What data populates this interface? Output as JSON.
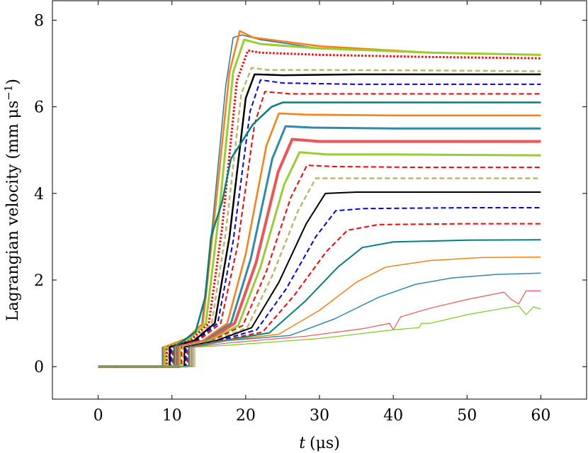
{
  "chart_data": {
    "type": "line",
    "title": "",
    "xlabel_var": "t",
    "xlabel_unit": "(μs)",
    "ylabel": "Lagrangian velocity  (mm μs",
    "ylabel_sup": "−1",
    "ylabel_close": ")",
    "xlim": [
      -6.2,
      66.2
    ],
    "ylim": [
      -0.75,
      8.45
    ],
    "xticks": [
      0,
      10,
      20,
      30,
      40,
      50,
      60
    ],
    "yticks": [
      0,
      2,
      4,
      6,
      8
    ],
    "xtick_labels": [
      "0",
      "10",
      "20",
      "30",
      "40",
      "50",
      "60"
    ],
    "ytick_labels": [
      "0",
      "2",
      "4",
      "6",
      "8"
    ],
    "grid": false,
    "legend": "none",
    "series": [
      {
        "color": "#1f77b4",
        "dash": "solid",
        "width": 1.5,
        "points": [
          [
            0,
            0
          ],
          [
            8.7,
            0
          ],
          [
            8.7,
            0.45
          ],
          [
            12,
            0.6
          ],
          [
            14,
            0.9
          ],
          [
            15.5,
            3.3
          ],
          [
            17.3,
            6.5
          ],
          [
            18.3,
            7.6
          ],
          [
            19.5,
            7.66
          ],
          [
            22,
            7.55
          ],
          [
            30,
            7.35
          ],
          [
            45,
            7.25
          ],
          [
            60,
            7.2
          ]
        ]
      },
      {
        "color": "#ff7f0e",
        "dash": "solid",
        "width": 2.5,
        "points": [
          [
            0,
            0
          ],
          [
            8.9,
            0
          ],
          [
            8.9,
            0.45
          ],
          [
            12,
            0.65
          ],
          [
            14.2,
            1.0
          ],
          [
            15.8,
            3.5
          ],
          [
            17.8,
            6.8
          ],
          [
            19.2,
            7.75
          ],
          [
            21,
            7.6
          ],
          [
            30,
            7.4
          ],
          [
            45,
            7.25
          ],
          [
            60,
            7.2
          ]
        ]
      },
      {
        "color": "#9acd32",
        "dash": "solid",
        "width": 3.0,
        "points": [
          [
            0,
            0
          ],
          [
            9.1,
            0
          ],
          [
            9.1,
            0.45
          ],
          [
            12.3,
            0.62
          ],
          [
            14.6,
            1.0
          ],
          [
            16.3,
            3.4
          ],
          [
            18.3,
            6.8
          ],
          [
            19.8,
            7.55
          ],
          [
            22,
            7.45
          ],
          [
            30,
            7.35
          ],
          [
            45,
            7.25
          ],
          [
            60,
            7.2
          ]
        ]
      },
      {
        "color": "#ff0000",
        "dash": "dotted",
        "width": 3.0,
        "points": [
          [
            0,
            0
          ],
          [
            9.3,
            0
          ],
          [
            9.3,
            0.45
          ],
          [
            12.5,
            0.6
          ],
          [
            15,
            1.0
          ],
          [
            16.8,
            3.2
          ],
          [
            18.8,
            6.6
          ],
          [
            20.3,
            7.3
          ],
          [
            22,
            7.25
          ],
          [
            30,
            7.2
          ],
          [
            45,
            7.15
          ],
          [
            60,
            7.12
          ]
        ]
      },
      {
        "color": "#bdb76b",
        "dash": "dashed",
        "width": 2.5,
        "points": [
          [
            0,
            0
          ],
          [
            9.5,
            0
          ],
          [
            9.5,
            0.45
          ],
          [
            12.8,
            0.6
          ],
          [
            15.4,
            1.0
          ],
          [
            17.3,
            3.1
          ],
          [
            19.4,
            6.3
          ],
          [
            20.8,
            6.9
          ],
          [
            23,
            6.85
          ],
          [
            30,
            6.85
          ],
          [
            45,
            6.84
          ],
          [
            60,
            6.82
          ]
        ]
      },
      {
        "color": "#000000",
        "dash": "solid",
        "width": 2.5,
        "points": [
          [
            0,
            0
          ],
          [
            9.7,
            0
          ],
          [
            9.7,
            0.45
          ],
          [
            13,
            0.6
          ],
          [
            15.8,
            1.0
          ],
          [
            17.8,
            3.0
          ],
          [
            20,
            6.2
          ],
          [
            21.2,
            6.75
          ],
          [
            25,
            6.73
          ],
          [
            35,
            6.75
          ],
          [
            60,
            6.75
          ]
        ]
      },
      {
        "color": "#0000ee",
        "dash": "dashed",
        "width": 2.0,
        "points": [
          [
            0,
            0
          ],
          [
            9.9,
            0
          ],
          [
            9.9,
            0.45
          ],
          [
            13.3,
            0.6
          ],
          [
            16.2,
            1.0
          ],
          [
            18.3,
            2.9
          ],
          [
            20.6,
            5.9
          ],
          [
            22,
            6.62
          ],
          [
            25,
            6.55
          ],
          [
            35,
            6.52
          ],
          [
            60,
            6.52
          ]
        ]
      },
      {
        "color": "#ff0000",
        "dash": "dashed",
        "width": 2.0,
        "points": [
          [
            0,
            0
          ],
          [
            10.1,
            0
          ],
          [
            10.1,
            0.45
          ],
          [
            13.6,
            0.6
          ],
          [
            16.6,
            1.0
          ],
          [
            18.9,
            2.8
          ],
          [
            21.2,
            5.6
          ],
          [
            22.6,
            6.35
          ],
          [
            26,
            6.3
          ],
          [
            35,
            6.3
          ],
          [
            60,
            6.3
          ]
        ]
      },
      {
        "color": "#008080",
        "dash": "solid",
        "width": 2.5,
        "points": [
          [
            0,
            0
          ],
          [
            10.3,
            0
          ],
          [
            10.3,
            0.45
          ],
          [
            13.2,
            0.8
          ],
          [
            14.5,
            1.6
          ],
          [
            15.3,
            3.0
          ],
          [
            16.8,
            3.8
          ],
          [
            18,
            4.8
          ],
          [
            21,
            5.6
          ],
          [
            23.5,
            6.0
          ],
          [
            25,
            6.1
          ],
          [
            35,
            6.1
          ],
          [
            60,
            6.1
          ]
        ]
      },
      {
        "color": "#ff7f0e",
        "dash": "solid",
        "width": 2.5,
        "points": [
          [
            0,
            0
          ],
          [
            10.5,
            0
          ],
          [
            10.5,
            0.45
          ],
          [
            14.2,
            0.6
          ],
          [
            17.5,
            1.0
          ],
          [
            20,
            2.6
          ],
          [
            22.8,
            5.1
          ],
          [
            24.5,
            5.85
          ],
          [
            28,
            5.82
          ],
          [
            40,
            5.8
          ],
          [
            60,
            5.8
          ]
        ]
      },
      {
        "color": "#2e8bab",
        "dash": "solid",
        "width": 3.0,
        "points": [
          [
            0,
            0
          ],
          [
            10.7,
            0
          ],
          [
            10.7,
            0.45
          ],
          [
            14.5,
            0.6
          ],
          [
            18,
            1.0
          ],
          [
            20.7,
            2.5
          ],
          [
            23.6,
            4.8
          ],
          [
            25.4,
            5.55
          ],
          [
            29,
            5.52
          ],
          [
            40,
            5.5
          ],
          [
            60,
            5.5
          ]
        ]
      },
      {
        "color": "#f05555",
        "dash": "solid",
        "width": 4.0,
        "points": [
          [
            0,
            0
          ],
          [
            10.9,
            0
          ],
          [
            10.9,
            0.45
          ],
          [
            14.8,
            0.6
          ],
          [
            18.5,
            1.0
          ],
          [
            21.4,
            2.4
          ],
          [
            24.4,
            4.5
          ],
          [
            26.3,
            5.25
          ],
          [
            30,
            5.2
          ],
          [
            40,
            5.2
          ],
          [
            60,
            5.2
          ]
        ]
      },
      {
        "color": "#9acd32",
        "dash": "solid",
        "width": 3.0,
        "points": [
          [
            0,
            0
          ],
          [
            11.1,
            0
          ],
          [
            11.1,
            0.45
          ],
          [
            15.1,
            0.6
          ],
          [
            19,
            0.95
          ],
          [
            22,
            2.3
          ],
          [
            25.2,
            4.2
          ],
          [
            27.3,
            4.95
          ],
          [
            31,
            4.9
          ],
          [
            40,
            4.9
          ],
          [
            60,
            4.88
          ]
        ]
      },
      {
        "color": "#ff0000",
        "dash": "dashed",
        "width": 2.0,
        "points": [
          [
            0,
            0
          ],
          [
            11.3,
            0
          ],
          [
            11.3,
            0.45
          ],
          [
            15.4,
            0.6
          ],
          [
            19.6,
            0.95
          ],
          [
            22.8,
            2.2
          ],
          [
            26.1,
            3.9
          ],
          [
            28.3,
            4.65
          ],
          [
            32,
            4.62
          ],
          [
            45,
            4.6
          ],
          [
            60,
            4.6
          ]
        ]
      },
      {
        "color": "#bdb76b",
        "dash": "dashed",
        "width": 2.5,
        "points": [
          [
            0,
            0
          ],
          [
            11.5,
            0
          ],
          [
            11.5,
            0.45
          ],
          [
            15.7,
            0.6
          ],
          [
            20.2,
            0.9
          ],
          [
            23.6,
            2.1
          ],
          [
            27.1,
            3.6
          ],
          [
            29.5,
            4.35
          ],
          [
            33,
            4.35
          ],
          [
            45,
            4.35
          ],
          [
            60,
            4.35
          ]
        ]
      },
      {
        "color": "#000000",
        "dash": "solid",
        "width": 2.0,
        "points": [
          [
            0,
            0
          ],
          [
            11.7,
            0
          ],
          [
            11.7,
            0.45
          ],
          [
            16,
            0.6
          ],
          [
            20.8,
            0.9
          ],
          [
            24.5,
            1.95
          ],
          [
            28.2,
            3.3
          ],
          [
            30.8,
            4.0
          ],
          [
            35,
            4.03
          ],
          [
            50,
            4.03
          ],
          [
            60,
            4.03
          ]
        ]
      },
      {
        "color": "#0000ee",
        "dash": "dashed",
        "width": 2.0,
        "points": [
          [
            0,
            0
          ],
          [
            11.9,
            0
          ],
          [
            11.9,
            0.45
          ],
          [
            16.3,
            0.6
          ],
          [
            21.5,
            0.85
          ],
          [
            25.5,
            1.8
          ],
          [
            29.5,
            3.0
          ],
          [
            32.2,
            3.6
          ],
          [
            36,
            3.65
          ],
          [
            50,
            3.67
          ],
          [
            60,
            3.67
          ]
        ]
      },
      {
        "color": "#ff0000",
        "dash": "dashed",
        "width": 2.0,
        "points": [
          [
            0,
            0
          ],
          [
            12.1,
            0
          ],
          [
            12.1,
            0.45
          ],
          [
            16.6,
            0.6
          ],
          [
            22.3,
            0.8
          ],
          [
            26.6,
            1.65
          ],
          [
            30.9,
            2.65
          ],
          [
            33.8,
            3.15
          ],
          [
            38,
            3.28
          ],
          [
            50,
            3.3
          ],
          [
            60,
            3.3
          ]
        ]
      },
      {
        "color": "#008080",
        "dash": "solid",
        "width": 2.0,
        "points": [
          [
            0,
            0
          ],
          [
            12.3,
            0
          ],
          [
            12.3,
            0.45
          ],
          [
            16.9,
            0.6
          ],
          [
            23.2,
            0.78
          ],
          [
            28,
            1.5
          ],
          [
            32.5,
            2.3
          ],
          [
            35.8,
            2.75
          ],
          [
            40,
            2.88
          ],
          [
            50,
            2.92
          ],
          [
            60,
            2.93
          ]
        ]
      },
      {
        "color": "#ff7f0e",
        "dash": "solid",
        "width": 1.5,
        "points": [
          [
            0,
            0
          ],
          [
            12.5,
            0
          ],
          [
            12.5,
            0.45
          ],
          [
            17.2,
            0.6
          ],
          [
            24.5,
            0.75
          ],
          [
            30,
            1.3
          ],
          [
            35,
            1.95
          ],
          [
            39,
            2.3
          ],
          [
            45,
            2.45
          ],
          [
            52,
            2.52
          ],
          [
            60,
            2.53
          ]
        ]
      },
      {
        "color": "#2e8bab",
        "dash": "solid",
        "width": 1.5,
        "points": [
          [
            0,
            0
          ],
          [
            12.7,
            0
          ],
          [
            12.7,
            0.45
          ],
          [
            17.5,
            0.6
          ],
          [
            26,
            0.72
          ],
          [
            32,
            1.1
          ],
          [
            38,
            1.6
          ],
          [
            43,
            1.9
          ],
          [
            48,
            2.05
          ],
          [
            54,
            2.13
          ],
          [
            60,
            2.16
          ]
        ]
      },
      {
        "color": "#f05555",
        "dash": "solid",
        "width": 1.2,
        "points": [
          [
            0,
            0
          ],
          [
            12.9,
            0
          ],
          [
            12.9,
            0.45
          ],
          [
            17.8,
            0.55
          ],
          [
            28,
            0.7
          ],
          [
            36,
            0.88
          ],
          [
            39.5,
            1.0
          ],
          [
            40,
            0.85
          ],
          [
            41,
            1.15
          ],
          [
            45,
            1.35
          ],
          [
            50,
            1.55
          ],
          [
            55,
            1.72
          ],
          [
            56,
            1.55
          ],
          [
            57,
            1.45
          ],
          [
            58,
            1.75
          ],
          [
            60,
            1.75
          ]
        ]
      },
      {
        "color": "#7ccd1a",
        "dash": "solid",
        "width": 1.2,
        "points": [
          [
            0,
            0
          ],
          [
            13.1,
            0
          ],
          [
            13.1,
            0.45
          ],
          [
            18.2,
            0.5
          ],
          [
            30,
            0.65
          ],
          [
            40,
            0.85
          ],
          [
            43.5,
            0.9
          ],
          [
            43.8,
            1.0
          ],
          [
            45,
            1.0
          ],
          [
            50,
            1.2
          ],
          [
            55,
            1.35
          ],
          [
            57,
            1.4
          ],
          [
            58,
            1.2
          ],
          [
            59,
            1.38
          ],
          [
            60,
            1.33
          ]
        ]
      }
    ]
  }
}
